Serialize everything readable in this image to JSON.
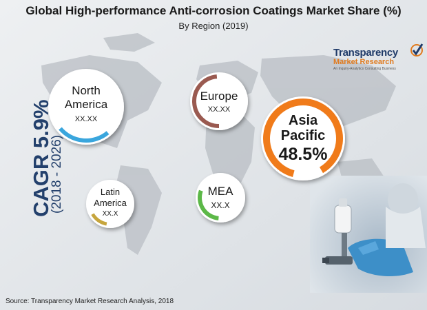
{
  "header": {
    "title": "Global High-performance Anti-corrosion Coatings Market Share (%)",
    "subtitle": "By Region (2019)"
  },
  "logo": {
    "line1": "Transparency",
    "line2": "Market Research",
    "line3": "An Inquiry-Analytics Consulting Business"
  },
  "cagr": {
    "value": "CAGR 5.9%",
    "period": "(2018 - 2026)"
  },
  "source": "Source: Transparency Market Research Analysis, 2018",
  "chart_data": {
    "type": "pie",
    "title": "Global High-performance Anti-corrosion Coatings Market Share (%)",
    "subtitle": "By Region (2019)",
    "regions": [
      {
        "name": "North America",
        "line1": "North",
        "line2": "America",
        "value_label": "XX.XX",
        "color": "#3aa6dd"
      },
      {
        "name": "Europe",
        "line1": "Europe",
        "line2": "",
        "value_label": "XX.XX",
        "color": "#9a5a50"
      },
      {
        "name": "Asia Pacific",
        "line1": "Asia",
        "line2": "Pacific",
        "value_label": "48.5%",
        "color": "#f07b1a"
      },
      {
        "name": "Latin America",
        "line1": "Latin",
        "line2": "America",
        "value_label": "XX.X",
        "color": "#c6a53d"
      },
      {
        "name": "MEA",
        "line1": "MEA",
        "line2": "",
        "value_label": "XX.X",
        "color": "#5cb848"
      }
    ]
  }
}
